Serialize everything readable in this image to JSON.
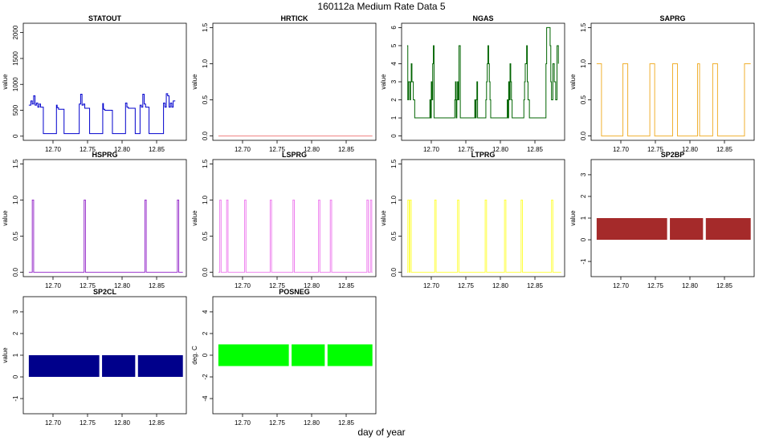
{
  "title": "160112a   Medium Rate Data 5",
  "xlabel": "day of year",
  "x_ticks": [
    "12.70",
    "12.75",
    "12.80",
    "12.85"
  ],
  "chart_data": [
    {
      "type": "line",
      "title": "STATOUT",
      "ylabel": "value",
      "color": "#0000cd",
      "xlim": [
        12.657,
        12.893
      ],
      "ylim": [
        -80,
        2180
      ],
      "yticks": [
        "0",
        "500",
        "1000",
        "1500",
        "2000"
      ],
      "ytick_values": [
        0,
        500,
        1000,
        1500,
        2000
      ],
      "series": [
        {
          "name": "STATOUT",
          "step": true,
          "x": [
            12.665,
            12.668,
            12.67,
            12.672,
            12.674,
            12.676,
            12.678,
            12.68,
            12.682,
            12.684,
            12.686,
            12.705,
            12.706,
            12.708,
            12.715,
            12.716,
            12.738,
            12.74,
            12.742,
            12.744,
            12.746,
            12.752,
            12.753,
            12.772,
            12.773,
            12.775,
            12.785,
            12.786,
            12.805,
            12.807,
            12.809,
            12.818,
            12.819,
            12.826,
            12.828,
            12.83,
            12.832,
            12.834,
            12.838,
            12.839,
            12.858,
            12.86,
            12.862,
            12.864,
            12.866,
            12.868,
            12.87,
            12.872,
            12.874,
            12.877
          ],
          "y": [
            600,
            680,
            620,
            780,
            600,
            640,
            560,
            620,
            560,
            560,
            50,
            600,
            550,
            520,
            520,
            50,
            620,
            810,
            600,
            620,
            540,
            540,
            50,
            630,
            520,
            500,
            500,
            50,
            640,
            560,
            540,
            540,
            50,
            600,
            560,
            810,
            620,
            560,
            560,
            50,
            50,
            640,
            560,
            820,
            780,
            560,
            640,
            560,
            680,
            680
          ]
        }
      ]
    },
    {
      "type": "line",
      "title": "HRTICK",
      "ylabel": "value",
      "color": "#f08080",
      "xlim": [
        12.657,
        12.893
      ],
      "ylim": [
        -0.06,
        1.56
      ],
      "yticks": [
        "0.0",
        "0.5",
        "1.0",
        "1.5"
      ],
      "ytick_values": [
        0,
        0.5,
        1.0,
        1.5
      ],
      "series": [
        {
          "name": "HRTICK",
          "step": true,
          "x": [
            12.665,
            12.888
          ],
          "y": [
            0,
            0
          ]
        }
      ]
    },
    {
      "type": "line",
      "title": "NGAS",
      "ylabel": "value",
      "color": "#006400",
      "xlim": [
        12.657,
        12.893
      ],
      "ylim": [
        -0.24,
        6.24
      ],
      "yticks": [
        "0",
        "1",
        "2",
        "3",
        "4",
        "5",
        "6"
      ],
      "ytick_values": [
        0,
        1,
        2,
        3,
        4,
        5,
        6
      ],
      "series": [
        {
          "name": "NGAS",
          "step": true,
          "x": [
            12.665,
            12.666,
            12.667,
            12.669,
            12.67,
            12.671,
            12.672,
            12.674,
            12.676,
            12.698,
            12.699,
            12.7,
            12.701,
            12.702,
            12.703,
            12.704,
            12.734,
            12.735,
            12.736,
            12.737,
            12.738,
            12.739,
            12.74,
            12.742,
            12.763,
            12.764,
            12.765,
            12.766,
            12.767,
            12.768,
            12.779,
            12.78,
            12.781,
            12.782,
            12.783,
            12.784,
            12.785,
            12.786,
            12.81,
            12.811,
            12.812,
            12.813,
            12.814,
            12.815,
            12.816,
            12.817,
            12.834,
            12.835,
            12.836,
            12.837,
            12.838,
            12.839,
            12.84,
            12.842,
            12.866,
            12.867,
            12.868,
            12.869,
            12.87,
            12.871,
            12.872,
            12.873,
            12.874,
            12.876,
            12.878,
            12.88,
            12.882,
            12.884
          ],
          "y": [
            5,
            2,
            3,
            2,
            3,
            4,
            3,
            2,
            1,
            2,
            1,
            3,
            2,
            4,
            5,
            1,
            2,
            3,
            1,
            2,
            3,
            2,
            5,
            1,
            2,
            1,
            2,
            3,
            1,
            1,
            2,
            3,
            4,
            5,
            4,
            3,
            2,
            1,
            2,
            1,
            3,
            2,
            4,
            3,
            2,
            1,
            2,
            3,
            4,
            4,
            5,
            3,
            2,
            1,
            4,
            6,
            6,
            6,
            6,
            6,
            5,
            3,
            2,
            4,
            3,
            2,
            5,
            4
          ]
        }
      ]
    },
    {
      "type": "line",
      "title": "SAPRG",
      "ylabel": "value",
      "color": "#f0b030",
      "xlim": [
        12.657,
        12.893
      ],
      "ylim": [
        -0.06,
        1.56
      ],
      "yticks": [
        "0.0",
        "0.5",
        "1.0",
        "1.5"
      ],
      "ytick_values": [
        0,
        0.5,
        1.0,
        1.5
      ],
      "series": [
        {
          "name": "SAPRG",
          "step": true,
          "x": [
            12.665,
            12.672,
            12.703,
            12.71,
            12.742,
            12.749,
            12.775,
            12.782,
            12.811,
            12.814,
            12.833,
            12.84,
            12.879,
            12.888
          ],
          "y": [
            1,
            0,
            1,
            0,
            1,
            0,
            1,
            0,
            1,
            0,
            1,
            0,
            1,
            1
          ]
        }
      ]
    },
    {
      "type": "line",
      "title": "HSPRG",
      "ylabel": "value",
      "color": "#9932cc",
      "xlim": [
        12.657,
        12.893
      ],
      "ylim": [
        -0.06,
        1.56
      ],
      "yticks": [
        "0.0",
        "0.5",
        "1.0",
        "1.5"
      ],
      "ytick_values": [
        0,
        0.5,
        1.0,
        1.5
      ],
      "series": [
        {
          "name": "HSPRG",
          "step": true,
          "x": [
            12.665,
            12.67,
            12.672,
            12.745,
            12.747,
            12.833,
            12.835,
            12.88,
            12.882,
            12.888
          ],
          "y": [
            0,
            1,
            0,
            1,
            0,
            1,
            0,
            1,
            0,
            0
          ]
        }
      ]
    },
    {
      "type": "line",
      "title": "LSPRG",
      "ylabel": "value",
      "color": "#ee82ee",
      "xlim": [
        12.657,
        12.893
      ],
      "ylim": [
        -0.06,
        1.56
      ],
      "yticks": [
        "0.0",
        "0.5",
        "1.0",
        "1.5"
      ],
      "ytick_values": [
        0,
        0.5,
        1.0,
        1.5
      ],
      "series": [
        {
          "name": "LSPRG",
          "step": true,
          "x": [
            12.665,
            12.667,
            12.669,
            12.677,
            12.679,
            12.703,
            12.705,
            12.74,
            12.742,
            12.773,
            12.775,
            12.81,
            12.812,
            12.827,
            12.829,
            12.88,
            12.882,
            12.885,
            12.887,
            12.888
          ],
          "y": [
            0,
            1,
            0,
            1,
            0,
            1,
            0,
            1,
            0,
            1,
            0,
            1,
            0,
            1,
            0,
            1,
            0,
            1,
            0,
            0
          ]
        }
      ]
    },
    {
      "type": "line",
      "title": "LTPRG",
      "ylabel": "value",
      "color": "#ffff40",
      "xlim": [
        12.657,
        12.893
      ],
      "ylim": [
        -0.06,
        1.56
      ],
      "yticks": [
        "0.0",
        "0.5",
        "1.0",
        "1.5"
      ],
      "ytick_values": [
        0,
        0.5,
        1.0,
        1.5
      ],
      "series": [
        {
          "name": "LTPRG",
          "step": true,
          "x": [
            12.665,
            12.666,
            12.668,
            12.669,
            12.671,
            12.705,
            12.707,
            12.738,
            12.74,
            12.778,
            12.78,
            12.806,
            12.808,
            12.83,
            12.832,
            12.874,
            12.876,
            12.888
          ],
          "y": [
            0,
            1,
            0,
            1,
            0,
            1,
            0,
            1,
            0,
            1,
            0,
            1,
            0,
            1,
            0,
            1,
            0,
            0
          ]
        }
      ]
    },
    {
      "type": "bar",
      "title": "SP2BP",
      "ylabel": "value",
      "color": "#a52a2a",
      "xlim": [
        12.657,
        12.893
      ],
      "ylim": [
        -1.7,
        3.7
      ],
      "yticks": [
        "-1",
        "0",
        "1",
        "2",
        "3"
      ],
      "ytick_values": [
        -1,
        0,
        1,
        2,
        3
      ],
      "segments": [
        [
          12.665,
          12.767,
          0,
          1
        ],
        [
          12.771,
          12.819,
          0,
          1
        ],
        [
          12.823,
          12.888,
          0,
          1
        ]
      ]
    },
    {
      "type": "bar",
      "title": "SP2CL",
      "ylabel": "value",
      "color": "#00008b",
      "xlim": [
        12.657,
        12.893
      ],
      "ylim": [
        -1.7,
        3.7
      ],
      "yticks": [
        "-1",
        "0",
        "1",
        "2",
        "3"
      ],
      "ytick_values": [
        -1,
        0,
        1,
        2,
        3
      ],
      "segments": [
        [
          12.665,
          12.767,
          0,
          1
        ],
        [
          12.771,
          12.819,
          0,
          1
        ],
        [
          12.823,
          12.888,
          0,
          1
        ]
      ]
    },
    {
      "type": "bar",
      "title": "POSNEG",
      "ylabel": "deg. C",
      "color": "#00ff00",
      "xlim": [
        12.657,
        12.893
      ],
      "ylim": [
        -5.4,
        5.4
      ],
      "yticks": [
        "-4",
        "-2",
        "0",
        "2",
        "4"
      ],
      "ytick_values": [
        -4,
        -2,
        0,
        2,
        4
      ],
      "segments": [
        [
          12.665,
          12.767,
          -1,
          1
        ],
        [
          12.771,
          12.819,
          -1,
          1
        ],
        [
          12.823,
          12.888,
          -1,
          1
        ]
      ]
    }
  ]
}
